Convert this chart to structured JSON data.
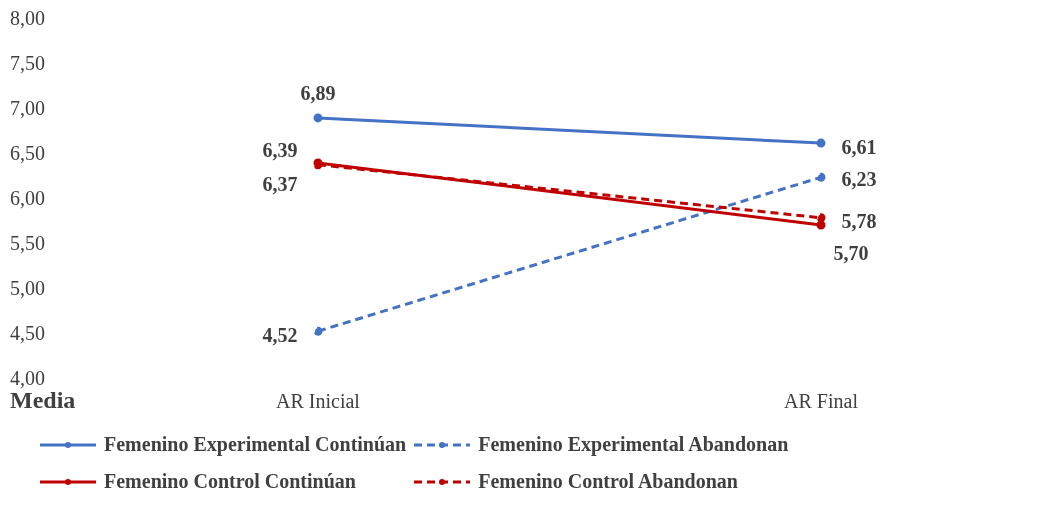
{
  "chart_data": {
    "type": "line",
    "ylabel": "Media",
    "categories": [
      "AR Inicial",
      "AR Final"
    ],
    "series": [
      {
        "name": "Femenino Experimental Continúan",
        "color": "#4472c4",
        "line_style": "solid",
        "values": [
          6.89,
          6.61
        ],
        "value_labels": [
          "6,89",
          "6,61"
        ]
      },
      {
        "name": "Femenino Experimental Abandonan",
        "color": "#4472c4",
        "line_style": "dashed",
        "values": [
          4.52,
          6.23
        ],
        "value_labels": [
          "4,52",
          "6,23"
        ]
      },
      {
        "name": "Femenino Control Continúan",
        "color": "#c00000",
        "line_style": "solid",
        "values": [
          6.39,
          5.7
        ],
        "value_labels": [
          "6,39",
          "5,70"
        ]
      },
      {
        "name": "Femenino Control Abandonan",
        "color": "#c00000",
        "line_style": "dashed",
        "values": [
          6.37,
          5.78
        ],
        "value_labels": [
          "6,37",
          "5,78"
        ]
      }
    ],
    "ylim": [
      4,
      8
    ],
    "yticks": [
      {
        "value": 4,
        "label": "4,00"
      },
      {
        "value": 4.5,
        "label": "4,50"
      },
      {
        "value": 5,
        "label": "5,00"
      },
      {
        "value": 5.5,
        "label": "5,50"
      },
      {
        "value": 6,
        "label": "6,00"
      },
      {
        "value": 6.5,
        "label": "6,50"
      },
      {
        "value": 7,
        "label": "7,00"
      },
      {
        "value": 7.5,
        "label": "7,50"
      },
      {
        "value": 8,
        "label": "8,00"
      }
    ],
    "grid": false,
    "legend": "bottom",
    "marker": "circle"
  }
}
